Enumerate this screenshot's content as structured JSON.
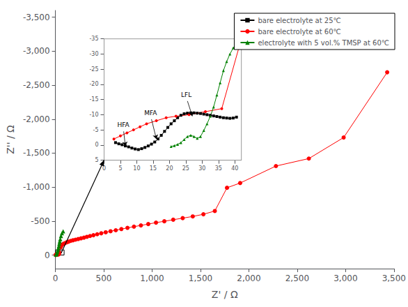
{
  "chart_data": [
    {
      "type": "line",
      "xlabel": "Z' / Ω",
      "ylabel": "Z'' / Ω",
      "xlim": [
        0,
        3500
      ],
      "ylim": [
        200,
        -3600
      ],
      "xticks": [
        0,
        500,
        1000,
        1500,
        2000,
        2500,
        3000,
        3500
      ],
      "yticks": [
        -3500,
        -3000,
        -2500,
        -2000,
        -1500,
        -1000,
        -500,
        0
      ],
      "grid": false,
      "legend": "upper right",
      "series": [
        {
          "name": "bare electrolyte at 60℃",
          "color": "red",
          "marker": "circle",
          "line_style": "solid",
          "x": [
            3,
            5,
            7,
            9,
            11,
            13,
            16,
            19,
            22,
            26,
            31,
            36,
            42,
            55,
            68,
            82,
            98,
            116,
            136,
            158,
            182,
            208,
            236,
            265,
            295,
            326,
            358,
            393,
            432,
            474,
            520,
            570,
            624,
            682,
            745,
            812,
            884,
            960,
            1040,
            1126,
            1218,
            1316,
            1420,
            1530,
            1648,
            1774,
            1910,
            2280,
            2620,
            2980,
            3430
          ],
          "values": [
            -2,
            -3,
            -4,
            -5,
            -6,
            -7,
            -8,
            -9,
            -9.5,
            -10,
            -11,
            -12,
            -35,
            -115,
            -148,
            -163,
            -175,
            -187,
            -197,
            -208,
            -217,
            -226,
            -236,
            -246,
            -256,
            -268,
            -280,
            -292,
            -306,
            -320,
            -335,
            -350,
            -365,
            -382,
            -400,
            -418,
            -436,
            -456,
            -477,
            -497,
            -520,
            -543,
            -568,
            -600,
            -648,
            -990,
            -1060,
            -1310,
            -1420,
            -1730,
            -2690
          ]
        },
        {
          "name": "electrolyte with 5 vol.% TMSP at 60℃",
          "color": "green",
          "marker": "triangle",
          "line_style": "solid",
          "x": [
            5,
            10,
            15,
            20,
            25,
            30,
            35,
            40,
            45,
            50,
            58,
            68,
            80
          ],
          "values": [
            -5,
            -15,
            -32,
            -52,
            -75,
            -100,
            -132,
            -168,
            -200,
            -235,
            -280,
            -320,
            -350
          ]
        }
      ],
      "rect": {
        "x0": 0,
        "y0": -75,
        "width": 90,
        "height": 75
      }
    },
    {
      "type": "line",
      "xlim": [
        0,
        42
      ],
      "ylim": [
        5,
        -35
      ],
      "xticks": [
        0,
        5,
        10,
        15,
        20,
        25,
        30,
        35,
        40
      ],
      "yticks": [
        -35,
        -30,
        -25,
        -20,
        -15,
        -10,
        -5,
        0,
        5
      ],
      "grid": false,
      "series": [
        {
          "name": "bare electrolyte at 25℃",
          "color": "black",
          "marker": "square",
          "line_style": "solid",
          "x": [
            3.5,
            4.5,
            5.5,
            6.5,
            7.5,
            8.5,
            9.5,
            10.5,
            11.5,
            12.5,
            13.5,
            14.5,
            15.5,
            16.5,
            17.5,
            18.5,
            19.5,
            20.5,
            21.5,
            22.5,
            23.5,
            24.5,
            25.5,
            26.5,
            27.5,
            28.5,
            29.5,
            30.5,
            31.5,
            32.5,
            33.5,
            34.5,
            35.5,
            36.5,
            37.5,
            38.5,
            39.5,
            40.5
          ],
          "values": [
            -0.8,
            -0.4,
            -0.1,
            0.3,
            0.6,
            1.0,
            1.3,
            1.5,
            1.2,
            0.8,
            0.3,
            -0.3,
            -1.0,
            -2.0,
            -3.2,
            -4.5,
            -5.8,
            -7.0,
            -8.0,
            -9.0,
            -9.8,
            -10.3,
            -10.5,
            -10.6,
            -10.6,
            -10.5,
            -10.4,
            -10.2,
            -10.0,
            -9.8,
            -9.6,
            -9.4,
            -9.2,
            -9.0,
            -8.9,
            -8.8,
            -8.9,
            -9.2
          ]
        },
        {
          "name": "bare electrolyte at 60℃",
          "color": "red",
          "marker": "circle",
          "line_style": "solid",
          "x": [
            3,
            5,
            7,
            9,
            11,
            13,
            16,
            19,
            22,
            26,
            31,
            36,
            42
          ],
          "values": [
            -2,
            -3,
            -4,
            -5,
            -6,
            -7,
            -8,
            -9,
            -9.5,
            -10,
            -11,
            -12,
            -35
          ]
        },
        {
          "name": "electrolyte with 5 vol.% TMSP at 60℃",
          "color": "green",
          "marker": "triangle",
          "line_style": "solid",
          "x": [
            20.5,
            21.5,
            22.5,
            23.5,
            24.5,
            25.5,
            26.5,
            27.5,
            28.5,
            29.5,
            30.5,
            31.5,
            32.5,
            33.5,
            34.5,
            35.5,
            36.5,
            37.5,
            38.5,
            39.5,
            40.5,
            41.5
          ],
          "values": [
            0.5,
            0.2,
            -0.2,
            -0.8,
            -1.8,
            -2.8,
            -3.2,
            -2.8,
            -2.2,
            -2.8,
            -4.8,
            -7.0,
            -9.5,
            -12.5,
            -16.5,
            -20.5,
            -24.5,
            -27.5,
            -30.0,
            -32.0,
            -33.5,
            -35.0
          ]
        }
      ],
      "annotations": [
        {
          "text": "HFA",
          "x": 6.5,
          "y": 0.3,
          "text_x": 6.0,
          "text_y": -4.5
        },
        {
          "text": "MFA",
          "x": 16.0,
          "y": -2.0,
          "text_x": 14.5,
          "text_y": -8.5
        },
        {
          "text": "LFL",
          "x": 27.0,
          "y": -9.5,
          "text_x": 25.5,
          "text_y": -14.5
        }
      ]
    }
  ]
}
